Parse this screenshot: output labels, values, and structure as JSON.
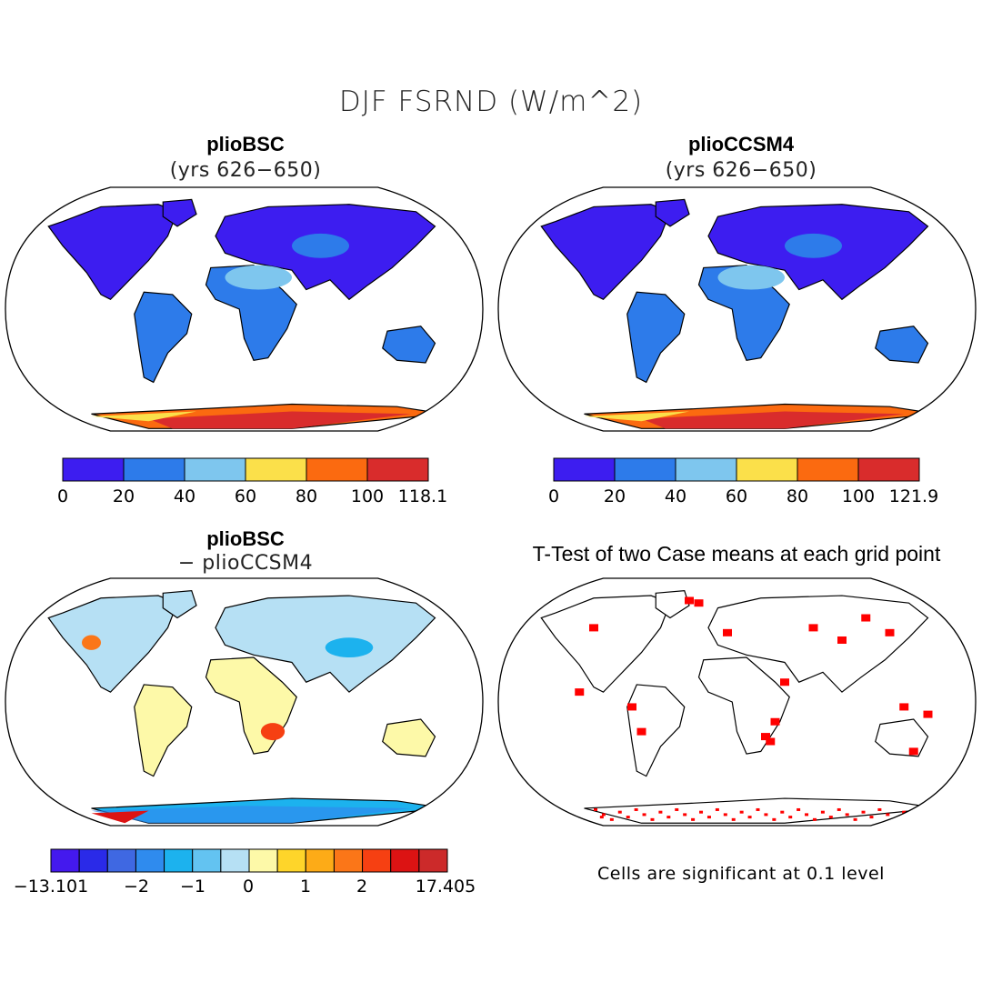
{
  "figure": {
    "title": "DJF FSRND (W/m^2)",
    "colors": {
      "abs_scale": [
        "#3d1df0",
        "#2d7bea",
        "#7ec6ee",
        "#fbe04a",
        "#fb6a10",
        "#d92c2c"
      ],
      "diff_scale": [
        "#4419ee",
        "#2a2ae8",
        "#3f68e2",
        "#2f8bee",
        "#1cb2ee",
        "#63c3f1",
        "#b6e0f4",
        "#fdf9a8",
        "#fed52a",
        "#fdab17",
        "#fb7618",
        "#f64012",
        "#dc1313",
        "#cc2a2a"
      ],
      "significant": "#ff0000",
      "land_outline": "#000000"
    }
  },
  "panels": [
    {
      "id": "plioBSC",
      "title": "plioBSC",
      "subtitle": "(yrs 626−650)",
      "colorbar": {
        "labels": [
          "0",
          "20",
          "40",
          "60",
          "80",
          "100",
          "118.1"
        ]
      }
    },
    {
      "id": "plioCCSM4",
      "title": "plioCCSM4",
      "subtitle": "(yrs 626−650)",
      "colorbar": {
        "labels": [
          "0",
          "20",
          "40",
          "60",
          "80",
          "100",
          "121.9"
        ]
      }
    },
    {
      "id": "diff",
      "title": "plioBSC",
      "subtitle": "− plioCCSM4",
      "colorbar": {
        "labels": [
          "−13.101",
          "−2",
          "−1",
          "0",
          "1",
          "2",
          "17.405"
        ]
      }
    },
    {
      "id": "ttest",
      "title": "T-Test of two Case means at each grid point",
      "note": "Cells are significant at 0.1 level"
    }
  ]
}
